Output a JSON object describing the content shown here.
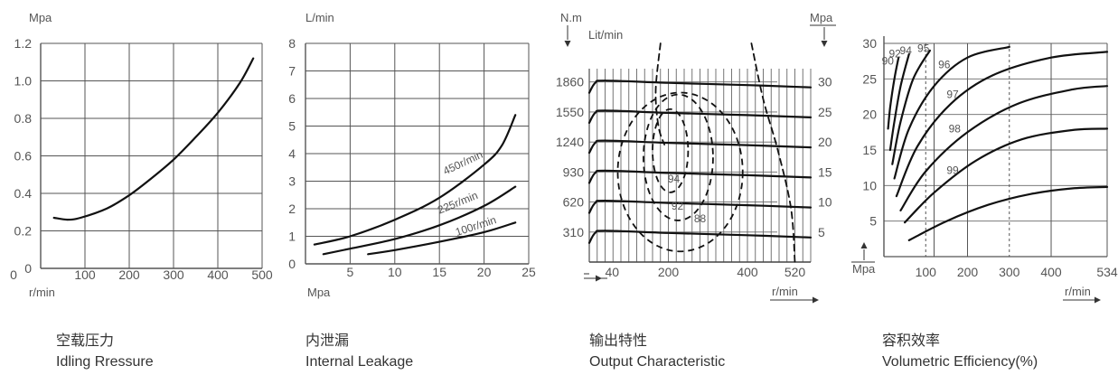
{
  "chart_data": [
    {
      "type": "line",
      "caption_cn": "空载压力",
      "caption_en": "Idling Rressure",
      "xlabel": "r/min",
      "ylabel": "Mpa",
      "xlim": [
        0,
        500
      ],
      "ylim": [
        0,
        1.2
      ],
      "x_ticks": [
        "100",
        "200",
        "300",
        "400",
        "500"
      ],
      "y_ticks": [
        "0",
        "0.2",
        "0.4",
        "0.6",
        "0.8",
        "1.0",
        "1.2"
      ],
      "x_origin_label": "0",
      "grid": true,
      "series": [
        {
          "x": [
            30,
            60,
            90,
            150,
            200,
            250,
            300,
            350,
            400,
            450,
            480
          ],
          "y": [
            0.27,
            0.26,
            0.27,
            0.32,
            0.39,
            0.48,
            0.58,
            0.7,
            0.83,
            0.99,
            1.12
          ]
        }
      ]
    },
    {
      "type": "line",
      "caption_cn": "内泄漏",
      "caption_en": "Internal Leakage",
      "xlabel": "Mpa",
      "ylabel": "L/min",
      "xlim": [
        0,
        25
      ],
      "ylim": [
        0,
        8
      ],
      "x_ticks": [
        "5",
        "10",
        "15",
        "20",
        "25"
      ],
      "y_ticks": [
        "0",
        "1",
        "2",
        "3",
        "4",
        "5",
        "6",
        "7",
        "8"
      ],
      "grid": true,
      "series": [
        {
          "name": "450r/min",
          "x": [
            1,
            5,
            10,
            15,
            20,
            22,
            23.5
          ],
          "y": [
            0.7,
            1.0,
            1.6,
            2.4,
            3.6,
            4.3,
            5.4
          ]
        },
        {
          "name": "225r/min",
          "x": [
            2,
            5,
            10,
            15,
            20,
            23.5
          ],
          "y": [
            0.35,
            0.55,
            0.9,
            1.4,
            2.1,
            2.8
          ]
        },
        {
          "name": "100r/min",
          "x": [
            7,
            10,
            15,
            20,
            23.5
          ],
          "y": [
            0.35,
            0.5,
            0.8,
            1.15,
            1.5
          ]
        }
      ]
    },
    {
      "type": "line",
      "caption_cn": "输出特性",
      "caption_en": "Output Characteristic",
      "xlabel": "r/min",
      "ylabel_left": "N.m",
      "ylabel_sub": "Lit/min",
      "ylabel_right": "Mpa",
      "xlim": [
        0,
        560
      ],
      "ylim": [
        0,
        2100
      ],
      "x_ticks": [
        {
          "value": 40,
          "label": "40"
        },
        {
          "value": 200,
          "label": "200"
        },
        {
          "value": 400,
          "label": "400"
        },
        {
          "value": 520,
          "label": "520"
        }
      ],
      "y_ticks_left": [
        {
          "value": 310,
          "label": "310"
        },
        {
          "value": 620,
          "label": "620"
        },
        {
          "value": 930,
          "label": "930"
        },
        {
          "value": 1240,
          "label": "1240"
        },
        {
          "value": 1550,
          "label": "1550"
        },
        {
          "value": 1860,
          "label": "1860"
        }
      ],
      "y_ticks_right": [
        {
          "value": 5,
          "label": "5"
        },
        {
          "value": 10,
          "label": "10"
        },
        {
          "value": 15,
          "label": "15"
        },
        {
          "value": 20,
          "label": "20"
        },
        {
          "value": 25,
          "label": "25"
        },
        {
          "value": 30,
          "label": "30"
        }
      ],
      "torque_curves": [
        1860,
        1550,
        1240,
        930,
        620,
        310
      ],
      "efficiency_contours": [
        "94",
        "92",
        "88"
      ],
      "grid": true
    },
    {
      "type": "line",
      "caption_cn": "容积效率",
      "caption_en": "Volumetric Efficiency(%)",
      "xlabel": "r/min",
      "ylabel": "Mpa",
      "xlim": [
        0,
        534
      ],
      "ylim": [
        0,
        30
      ],
      "x_ticks": [
        {
          "value": 100,
          "label": "100"
        },
        {
          "value": 200,
          "label": "200"
        },
        {
          "value": 300,
          "label": "300"
        },
        {
          "value": 400,
          "label": "400"
        },
        {
          "value": 534,
          "label": "534"
        }
      ],
      "y_ticks": [
        "5",
        "10",
        "15",
        "20",
        "25",
        "30"
      ],
      "grid": true,
      "series": [
        {
          "name": "90",
          "x": [
            10,
            15,
            25,
            35
          ],
          "y": [
            18,
            21,
            25,
            28
          ]
        },
        {
          "name": "92",
          "x": [
            15,
            25,
            40,
            60
          ],
          "y": [
            15,
            19,
            24,
            28.5
          ]
        },
        {
          "name": "94",
          "x": [
            20,
            40,
            70,
            110
          ],
          "y": [
            13,
            19,
            25,
            29
          ]
        },
        {
          "name": "95",
          "x": [
            25,
            60,
            120,
            200,
            300
          ],
          "y": [
            11,
            18,
            24,
            28,
            29.5
          ]
        },
        {
          "name": "96",
          "x": [
            30,
            80,
            160,
            260,
            400,
            534
          ],
          "y": [
            8.5,
            15.5,
            21.5,
            25.5,
            28,
            28.8
          ]
        },
        {
          "name": "97",
          "x": [
            40,
            100,
            200,
            320,
            450,
            534
          ],
          "y": [
            6.5,
            12,
            17.5,
            21.5,
            23.5,
            24
          ]
        },
        {
          "name": "98",
          "x": [
            50,
            120,
            220,
            330,
            450,
            534
          ],
          "y": [
            4.8,
            9,
            13.5,
            16.5,
            17.8,
            18
          ]
        },
        {
          "name": "99",
          "x": [
            60,
            150,
            250,
            350,
            450,
            534
          ],
          "y": [
            2.3,
            5,
            7.3,
            8.8,
            9.6,
            9.8
          ]
        }
      ]
    }
  ]
}
